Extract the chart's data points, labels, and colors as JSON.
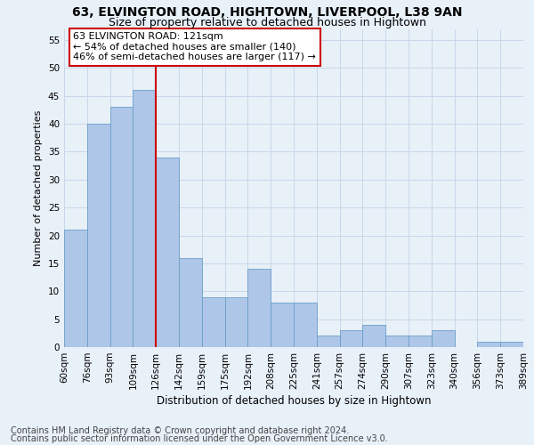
{
  "title1": "63, ELVINGTON ROAD, HIGHTOWN, LIVERPOOL, L38 9AN",
  "title2": "Size of property relative to detached houses in Hightown",
  "xlabel": "Distribution of detached houses by size in Hightown",
  "ylabel": "Number of detached properties",
  "footer1": "Contains HM Land Registry data © Crown copyright and database right 2024.",
  "footer2": "Contains public sector information licensed under the Open Government Licence v3.0.",
  "annotation_line1": "63 ELVINGTON ROAD: 121sqm",
  "annotation_line2": "← 54% of detached houses are smaller (140)",
  "annotation_line3": "46% of semi-detached houses are larger (117) →",
  "bar_values": [
    21,
    40,
    43,
    46,
    34,
    16,
    9,
    9,
    14,
    8,
    8,
    2,
    3,
    4,
    2,
    2,
    3,
    0,
    1,
    1
  ],
  "bin_labels": [
    "60sqm",
    "76sqm",
    "93sqm",
    "109sqm",
    "126sqm",
    "142sqm",
    "159sqm",
    "175sqm",
    "192sqm",
    "208sqm",
    "225sqm",
    "241sqm",
    "257sqm",
    "274sqm",
    "290sqm",
    "307sqm",
    "323sqm",
    "340sqm",
    "356sqm",
    "373sqm",
    "389sqm"
  ],
  "bar_color": "#aec6e8",
  "bar_edge_color": "#6a9fc8",
  "redline_x": 4,
  "ylim": [
    0,
    57
  ],
  "yticks": [
    0,
    5,
    10,
    15,
    20,
    25,
    30,
    35,
    40,
    45,
    50,
    55
  ],
  "grid_color": "#c8d8ea",
  "bg_color": "#e8f0f8",
  "annotation_box_color": "#ffffff",
  "annotation_box_edge": "#cc0000",
  "redline_color": "#cc0000",
  "title_fontsize": 10,
  "subtitle_fontsize": 9,
  "xlabel_fontsize": 8.5,
  "ylabel_fontsize": 8,
  "tick_fontsize": 7.5,
  "annotation_fontsize": 8,
  "footer_fontsize": 7
}
